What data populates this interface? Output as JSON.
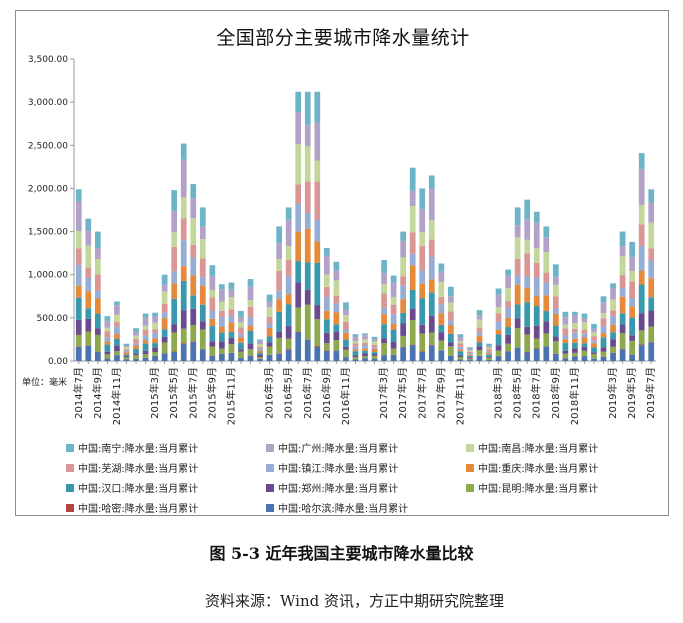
{
  "figure": {
    "caption": "图 5-3  近年我国主要城市降水量比较",
    "source": "资料来源：Wind 资讯，方正中期研究院整理"
  },
  "chart_data": {
    "type": "bar",
    "stacked": true,
    "title": "全国部分主要城市降水量统计",
    "unit_label": "单位：毫米",
    "ylim": [
      0,
      3500
    ],
    "yticks": [
      "3,500.00",
      "3,000.00",
      "2,500.00",
      "2,000.00",
      "1,500.00",
      "1,000.00",
      "500.00",
      "0.00"
    ],
    "grid": false,
    "legend_position": "bottom",
    "categories": [
      "2014-07",
      "2014-08",
      "2014-09",
      "2014-10",
      "2014-11",
      "2014-12",
      "2015-01",
      "2015-02",
      "2015-03",
      "2015-04",
      "2015-05",
      "2015-06",
      "2015-07",
      "2015-08",
      "2015-09",
      "2015-10",
      "2015-11",
      "2015-12",
      "2016-01",
      "2016-02",
      "2016-03",
      "2016-04",
      "2016-05",
      "2016-06",
      "2016-07",
      "2016-08",
      "2016-09",
      "2016-10",
      "2016-11",
      "2016-12",
      "2017-01",
      "2017-02",
      "2017-03",
      "2017-04",
      "2017-05",
      "2017-06",
      "2017-07",
      "2017-08",
      "2017-09",
      "2017-10",
      "2017-11",
      "2017-12",
      "2018-01",
      "2018-02",
      "2018-03",
      "2018-04",
      "2018-05",
      "2018-06",
      "2018-07",
      "2018-08",
      "2018-09",
      "2018-10",
      "2018-11",
      "2018-12",
      "2019-01",
      "2019-02",
      "2019-03",
      "2019-04",
      "2019-05",
      "2019-06",
      "2019-07"
    ],
    "tick_labels": [
      "2014年7月",
      "",
      "2014年9月",
      "",
      "2014年11月",
      "",
      "",
      "",
      "2015年3月",
      "",
      "2015年5月",
      "",
      "2015年7月",
      "",
      "2015年9月",
      "",
      "2015年11月",
      "",
      "",
      "",
      "2016年3月",
      "",
      "2016年5月",
      "",
      "2016年7月",
      "",
      "2016年9月",
      "",
      "2016年11月",
      "",
      "",
      "",
      "2017年3月",
      "",
      "2017年5月",
      "",
      "2017年7月",
      "",
      "2017年9月",
      "",
      "2017年11月",
      "",
      "",
      "",
      "2018年3月",
      "",
      "2018年5月",
      "",
      "2018年7月",
      "",
      "2018年9月",
      "",
      "2018年11月",
      "",
      "",
      "",
      "2019年3月",
      "",
      "2019年5月",
      "",
      "2019年7月"
    ],
    "totals": [
      1990,
      1650,
      1500,
      520,
      690,
      200,
      380,
      550,
      560,
      1000,
      1980,
      2520,
      2050,
      1780,
      1110,
      890,
      910,
      580,
      950,
      250,
      770,
      1560,
      1780,
      3120,
      3120,
      3120,
      1310,
      1150,
      680,
      310,
      320,
      280,
      1170,
      990,
      1500,
      2240,
      2000,
      2150,
      1130,
      860,
      310,
      160,
      590,
      200,
      840,
      1060,
      1780,
      1870,
      1730,
      1560,
      1120,
      570,
      570,
      550,
      430,
      750,
      900,
      1500,
      1380,
      2410,
      1990
    ],
    "series": [
      {
        "name": "中国:哈尔滨:降水量:当月累计",
        "color": "#4a73b0",
        "weight": 0.9
      },
      {
        "name": "中国:哈密:降水量:当月累计",
        "color": "#b04543",
        "weight": 0.03
      },
      {
        "name": "中国:昆明:降水量:当月累计",
        "color": "#8ea84d",
        "weight": 1.1
      },
      {
        "name": "中国:郑州:降水量:当月累计",
        "color": "#6a4b8f",
        "weight": 0.8
      },
      {
        "name": "中国:汉口:降水量:当月累计",
        "color": "#3a98ae",
        "weight": 1.3
      },
      {
        "name": "中国:重庆:降水量:当月累计",
        "color": "#e58a3a",
        "weight": 1.1
      },
      {
        "name": "中国:镇江:降水量:当月累计",
        "color": "#96aed6",
        "weight": 1.0
      },
      {
        "name": "中国:芜湖:降水量:当月累计",
        "color": "#d99694",
        "weight": 1.2
      },
      {
        "name": "中国:南昌:降水量:当月累计",
        "color": "#c4d79b",
        "weight": 1.3
      },
      {
        "name": "中国:广州:降水量:当月累计",
        "color": "#b3a2c7",
        "weight": 1.4
      },
      {
        "name": "中国:南宁:降水量:当月累计",
        "color": "#6db4c9",
        "weight": 1.1
      }
    ]
  },
  "legend_order": [
    10,
    9,
    8,
    7,
    6,
    5,
    4,
    3,
    2,
    1,
    0
  ]
}
